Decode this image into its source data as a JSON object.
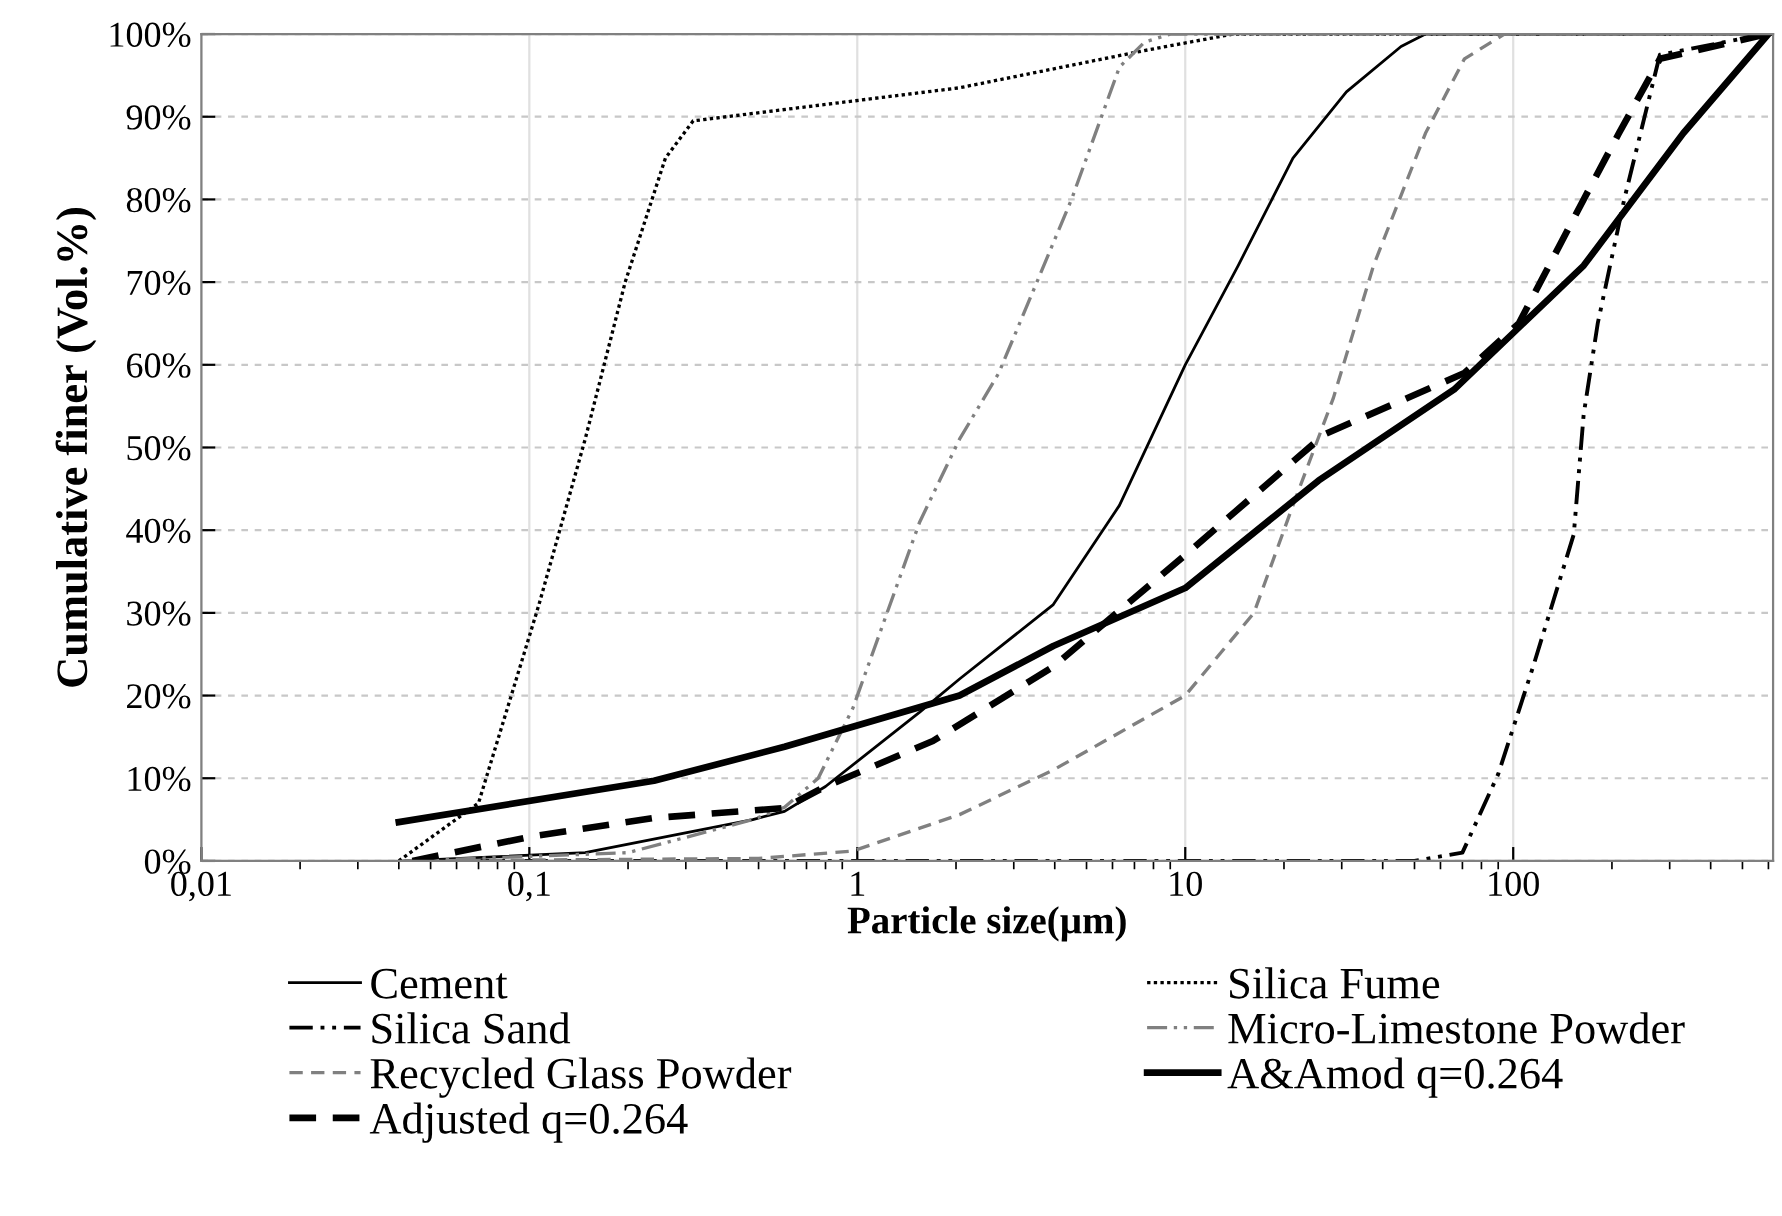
{
  "chart_data": {
    "type": "line",
    "xlabel": "Particle size(µm)",
    "ylabel": "Cumulative finer (Vol.%)",
    "log": "x",
    "grid": true,
    "legend": "bottom",
    "xlim": [
      0.01,
      620
    ],
    "xticks": [
      {
        "value": 0.01,
        "label": "0,01"
      },
      {
        "value": 0.1,
        "label": "0,1"
      },
      1,
      10,
      100
    ],
    "ylim": [
      0,
      100
    ],
    "yticks": [
      {
        "value": 0,
        "label": "0%"
      },
      {
        "value": 10,
        "label": "10%"
      },
      {
        "value": 20,
        "label": "20%"
      },
      {
        "value": 30,
        "label": "30%"
      },
      {
        "value": 40,
        "label": "40%"
      },
      {
        "value": 50,
        "label": "50%"
      },
      {
        "value": 60,
        "label": "60%"
      },
      {
        "value": 70,
        "label": "70%"
      },
      {
        "value": 80,
        "label": "80%"
      },
      {
        "value": 90,
        "label": "90%"
      },
      {
        "value": 100,
        "label": "100%"
      }
    ],
    "series": [
      {
        "name": "Cement",
        "color": "#000000",
        "line_style": "solid",
        "x": [
          0.042,
          0.148,
          0.48,
          0.6,
          0.8,
          1.55,
          2.05,
          3.96,
          6.3,
          10,
          14.5,
          21.3,
          31,
          45.5,
          54,
          620
        ],
        "values": [
          0,
          1,
          5,
          6,
          9,
          18,
          22,
          31,
          43,
          60,
          72,
          85,
          93,
          98.5,
          100,
          100
        ]
      },
      {
        "name": "Silica Fume",
        "color": "#000000",
        "line_style": "dotted",
        "x": [
          0.04,
          0.07,
          0.107,
          0.148,
          0.196,
          0.26,
          0.316,
          2.05,
          7.5,
          14,
          615
        ],
        "values": [
          0,
          7,
          31,
          51,
          70,
          85,
          89.5,
          93.5,
          98,
          100,
          100
        ]
      },
      {
        "name": "Silica Sand",
        "color": "#000000",
        "line_style": "dashdot",
        "x": [
          0.045,
          50,
          70,
          90,
          115,
          153,
          164,
          181,
          218,
          280,
          590
        ],
        "values": [
          0,
          0,
          1,
          10.5,
          23.5,
          39.5,
          54,
          65,
          80,
          97.5,
          100
        ]
      },
      {
        "name": "Micro-Limestone Powder",
        "color": "#808080",
        "line_style": "dashdot",
        "x": [
          0.043,
          0.2,
          0.48,
          0.6,
          0.76,
          0.97,
          1.55,
          2.05,
          2.7,
          4.5,
          6.3,
          7.5,
          9,
          610
        ],
        "values": [
          0,
          1,
          5,
          6.5,
          10,
          18.5,
          41,
          51,
          59,
          80,
          96,
          99,
          100,
          100
        ]
      },
      {
        "name": "Recycled Glass Powder",
        "color": "#808080",
        "line_style": "dashed",
        "x": [
          0.041,
          0.5,
          0.97,
          2.05,
          3.96,
          10,
          16.2,
          21.3,
          28.3,
          37.5,
          54,
          71,
          94,
          605
        ],
        "values": [
          0,
          0.3,
          1.2,
          5.6,
          11,
          20,
          30,
          43,
          56,
          72,
          88,
          97,
          100,
          100
        ]
      },
      {
        "name": "A&Amod q=0.264",
        "color": "#000000",
        "line_style": "solid",
        "x": [
          0.04,
          0.24,
          0.6,
          2.05,
          3.96,
          10,
          25.5,
          66,
          164,
          330,
          600
        ],
        "values": [
          4.7,
          9.7,
          13.8,
          20,
          26,
          33,
          46,
          57,
          72,
          88,
          100
        ]
      },
      {
        "name": "Adjusted q=0.264",
        "color": "#000000",
        "line_style": "dashed",
        "x": [
          0.044,
          0.103,
          0.24,
          0.6,
          0.8,
          1.7,
          3.96,
          10,
          26.6,
          71,
          104,
          164,
          210,
          280,
          595
        ],
        "values": [
          0,
          3,
          5.2,
          6.4,
          9,
          14.5,
          23.5,
          37,
          51.6,
          59,
          65,
          80,
          88,
          97,
          100
        ]
      }
    ]
  }
}
